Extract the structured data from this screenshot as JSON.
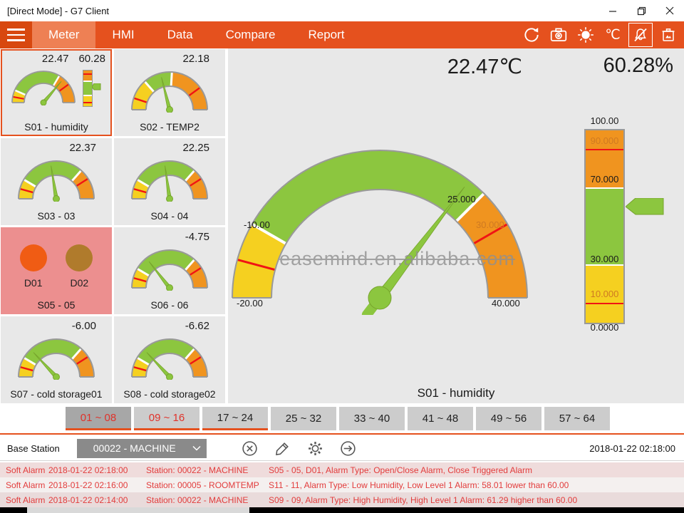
{
  "window": {
    "title": "[Direct Mode] - G7 Client",
    "controls": {
      "minimize": "–",
      "maximize": "restore",
      "close": "✕"
    }
  },
  "navbar": {
    "menu": [
      {
        "label": "Meter",
        "active": true
      },
      {
        "label": "HMI",
        "active": false
      },
      {
        "label": "Data",
        "active": false
      },
      {
        "label": "Compare",
        "active": false
      },
      {
        "label": "Report",
        "active": false
      }
    ],
    "unit": "℃",
    "icons": [
      "sync-icon",
      "camera-icon",
      "brightness-icon",
      "celsius-icon",
      "alarm-mute-icon",
      "clear-images-icon"
    ]
  },
  "colors": {
    "accent": "#e5511e",
    "green": "#8cc63f",
    "yellow": "#f5d020",
    "orange": "#f0941f",
    "red": "#f01414",
    "alarm_text": "#e23c3c",
    "pink": "#ec8f8f",
    "d01": "#f05c14",
    "d02": "#b07b2c"
  },
  "gauge_defs": {
    "main": {
      "zones": [
        [
          "yellow",
          0,
          0.1667
        ],
        [
          "green",
          0.1667,
          0.75
        ],
        [
          "orange",
          0.75,
          1
        ]
      ],
      "ticks": [
        0.0833,
        0.8333
      ],
      "needle_deg": 52.6
    },
    "s01": {
      "zones": [
        [
          "yellow",
          0,
          0.13
        ],
        [
          "green",
          0.13,
          0.67
        ],
        [
          "orange",
          0.67,
          1
        ]
      ],
      "ticks": [
        0.06,
        0.8
      ],
      "needle_deg": 50
    },
    "s02": {
      "zones": [
        [
          "yellow",
          0,
          0.27
        ],
        [
          "green",
          0.27,
          0.52
        ],
        [
          "orange",
          0.52,
          1
        ]
      ],
      "ticks": [
        0.1,
        0.8
      ],
      "needle_deg": 104
    },
    "mini_default": {
      "zones": [
        [
          "yellow",
          0,
          0.17
        ],
        [
          "green",
          0.17,
          0.73
        ],
        [
          "orange",
          0.73,
          1
        ]
      ],
      "ticks": [
        0.085,
        0.82
      ]
    }
  },
  "bar_def": {
    "zones": [
      [
        "orange",
        30
      ],
      [
        "green",
        40
      ],
      [
        "yellow",
        30
      ]
    ],
    "lines": [
      10,
      90
    ],
    "pointer_pct": 39.7
  },
  "tiles": [
    {
      "id": "S01",
      "label": "S01 - humidity",
      "values": [
        "22.47",
        "60.28"
      ],
      "type": "gauge_bar",
      "gauge": "s01",
      "needle_deg": 50,
      "selected": true
    },
    {
      "id": "S02",
      "label": "S02 - TEMP2",
      "values": [
        "22.18"
      ],
      "type": "gauge",
      "gauge": "s02",
      "needle_deg": 104,
      "selected": false
    },
    {
      "id": "S03",
      "label": "S03 - 03",
      "values": [
        "22.37"
      ],
      "type": "gauge",
      "gauge": "mini_default",
      "needle_deg": 99,
      "selected": false
    },
    {
      "id": "S04",
      "label": "S04 - 04",
      "values": [
        "22.25"
      ],
      "type": "gauge",
      "gauge": "mini_default",
      "needle_deg": 98,
      "selected": false
    },
    {
      "id": "S05",
      "label": "S05 - 05",
      "values": [],
      "type": "digital",
      "digitals": [
        {
          "label": "D01",
          "color_key": "d01"
        },
        {
          "label": "D02",
          "color_key": "d02"
        }
      ],
      "selected": false
    },
    {
      "id": "S06",
      "label": "S06 - 06",
      "values": [
        "-4.75"
      ],
      "type": "gauge",
      "gauge": "mini_default",
      "needle_deg": 128,
      "selected": false
    },
    {
      "id": "S07",
      "label": "S07 - cold storage01",
      "values": [
        "-6.00"
      ],
      "type": "gauge",
      "gauge": "mini_default",
      "needle_deg": 133,
      "selected": false
    },
    {
      "id": "S08",
      "label": "S08 - cold storage02",
      "values": [
        "-6.62"
      ],
      "type": "gauge",
      "gauge": "mini_default",
      "needle_deg": 133,
      "selected": false
    }
  ],
  "main": {
    "temp": "22.47℃",
    "humidity": "60.28%",
    "watermark": "easemind.en.alibaba.com",
    "gauge_title": "S01 - humidity",
    "gauge_labels": [
      "-10.00",
      "25.000",
      "30.000",
      "-20.00",
      "40.000"
    ],
    "bar_labels": [
      "100.00",
      "90.000",
      "70.000",
      "30.000",
      "10.000",
      "0.0000"
    ]
  },
  "tabs": [
    {
      "label": "01 ~ 08",
      "active": true,
      "red": true,
      "underline": true
    },
    {
      "label": "09 ~ 16",
      "active": false,
      "red": true,
      "underline": true
    },
    {
      "label": "17 ~ 24",
      "active": false,
      "red": false,
      "underline": true
    },
    {
      "label": "25 ~ 32",
      "active": false,
      "red": false,
      "underline": false
    },
    {
      "label": "33 ~ 40",
      "active": false,
      "red": false,
      "underline": false
    },
    {
      "label": "41 ~ 48",
      "active": false,
      "red": false,
      "underline": false
    },
    {
      "label": "49 ~ 56",
      "active": false,
      "red": false,
      "underline": false
    },
    {
      "label": "57 ~ 64",
      "active": false,
      "red": false,
      "underline": false
    }
  ],
  "station_bar": {
    "label": "Base Station",
    "selected": "00022 - MACHINE",
    "timestamp": "2018-01-22 02:18:00",
    "icons": [
      "cancel-icon",
      "edit-icon",
      "settings-icon",
      "go-icon"
    ]
  },
  "alarms": [
    {
      "severity": "Soft Alarm",
      "time": "2018-01-22 02:18:00",
      "station": "Station: 00022 - MACHINE",
      "detail": "S05 - 05, D01, Alarm Type: Open/Close Alarm, Close Triggered Alarm"
    },
    {
      "severity": "Soft Alarm",
      "time": "2018-01-22 02:16:00",
      "station": "Station: 00005 - ROOMTEMP",
      "detail": "S11 - 11, Alarm Type: Low Humidity, Low Level 1 Alarm: 58.01 lower than 60.00"
    },
    {
      "severity": "Soft Alarm",
      "time": "2018-01-22 02:14:00",
      "station": "Station: 00022 - MACHINE",
      "detail": "S09 - 09, Alarm Type: High Humidity, High Level 1 Alarm: 61.29 higher than 60.00"
    }
  ]
}
